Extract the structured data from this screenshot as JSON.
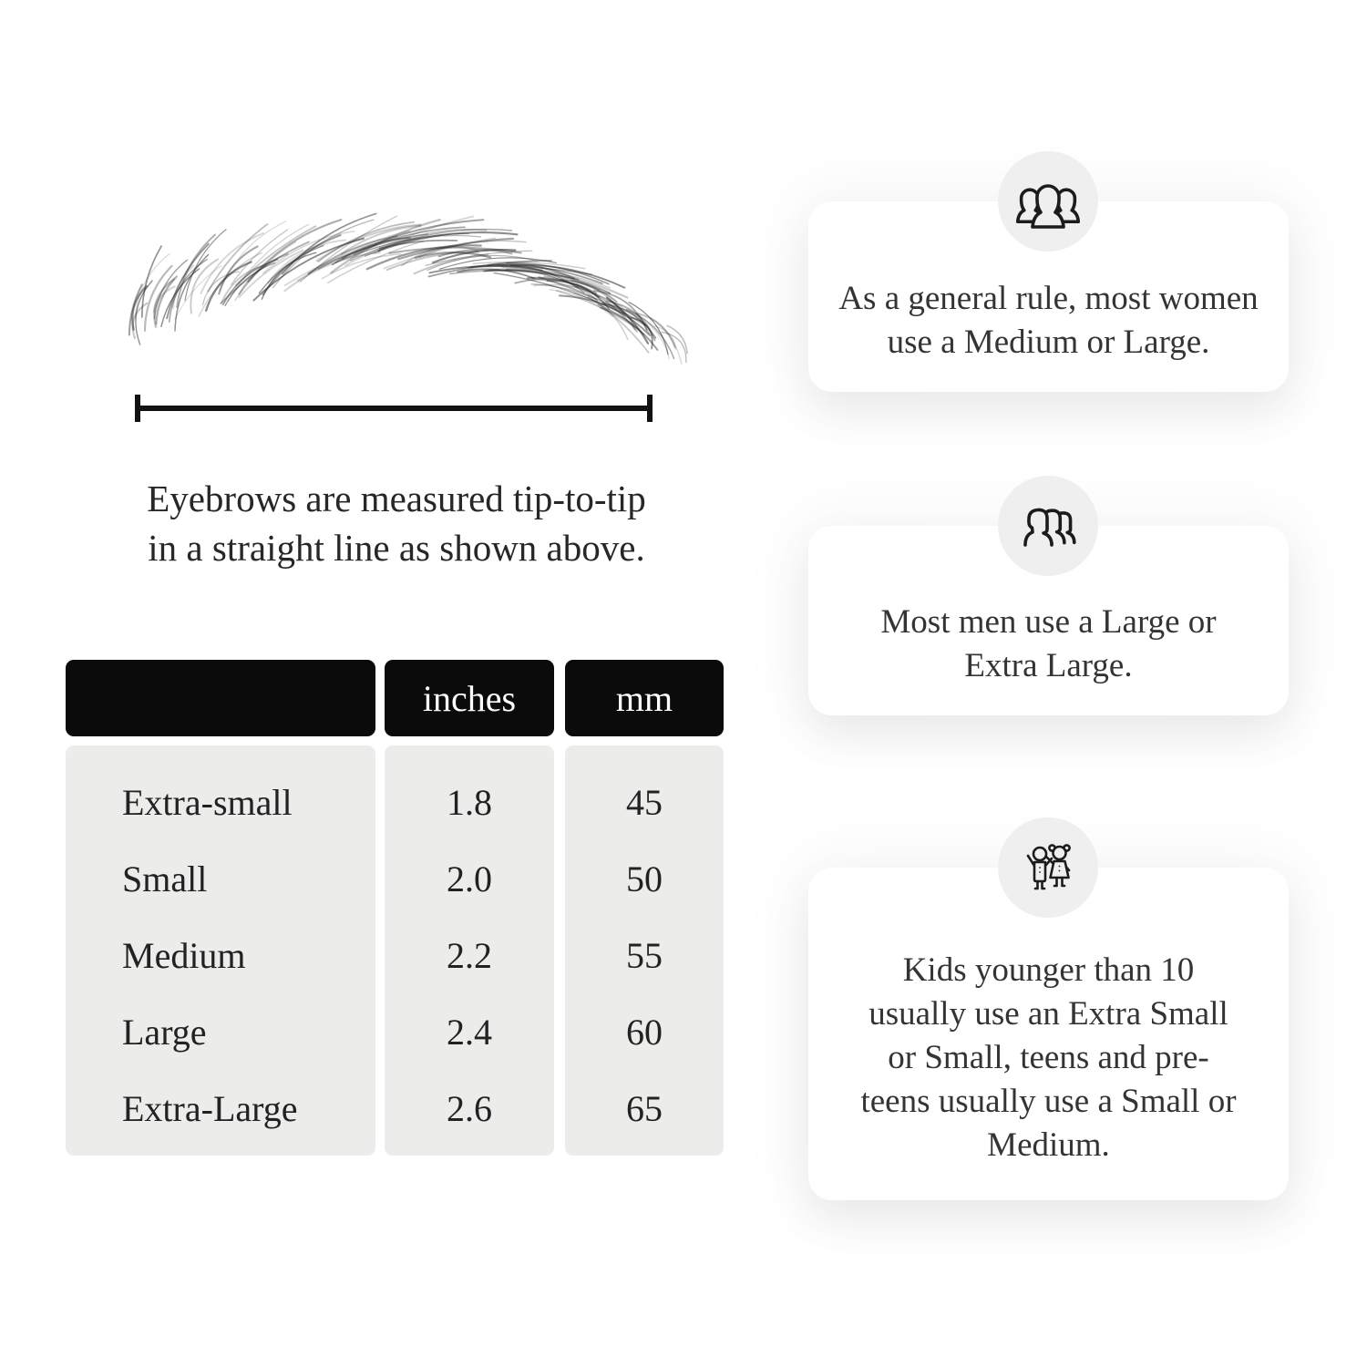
{
  "illustration": {
    "name": "hand-drawn eyebrow sketch with tip-to-tip measurement line"
  },
  "caption": {
    "lines": [
      "Eyebrows are measured tip-to-tip",
      "in a straight line as shown above."
    ]
  },
  "table": {
    "headers": {
      "size": "",
      "inches": "inches",
      "mm": "mm"
    },
    "rows": [
      {
        "size": "Extra-small",
        "inches": "1.8",
        "mm": "45"
      },
      {
        "size": "Small",
        "inches": "2.0",
        "mm": "50"
      },
      {
        "size": "Medium",
        "inches": "2.2",
        "mm": "55"
      },
      {
        "size": "Large",
        "inches": "2.4",
        "mm": "60"
      },
      {
        "size": "Extra-Large",
        "inches": "2.6",
        "mm": "65"
      }
    ]
  },
  "cards": [
    {
      "icon": "women-group-icon",
      "text": "As a general rule, most women use a Medium or Large."
    },
    {
      "icon": "men-group-icon",
      "text": "Most men use a Large or Extra Large."
    },
    {
      "icon": "kids-icon",
      "text": "Kids younger than 10 usually use an Extra Small or Small, teens and pre-teens usually use a Small or Medium."
    }
  ],
  "colors": {
    "page_background": "#ffffff",
    "table_header_bg": "#0b0b0b",
    "table_header_text": "#ffffff",
    "table_body_bg": "#ececeb",
    "icon_circle_bg": "#f0efef",
    "card_bg": "#ffffff",
    "text": "#2e2e2e",
    "line": "#121212"
  }
}
